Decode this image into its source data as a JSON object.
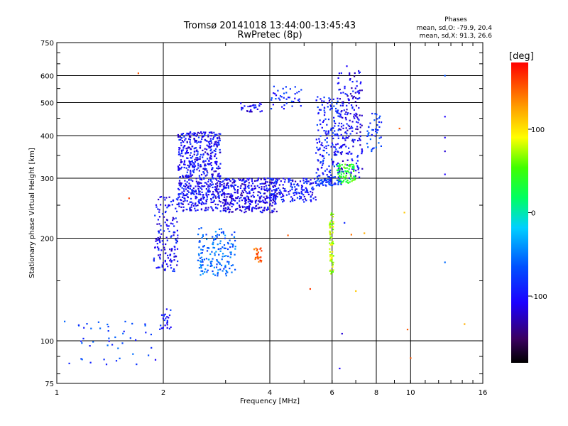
{
  "chart_data": {
    "type": "scatter",
    "title": "Tromsø 20141018 13:44:00-13:45:43",
    "subtitle": "RwPretec (8p)",
    "xlabel": "Frequency [MHz]",
    "ylabel": "Stationary phase Virtual Height [km]",
    "x_scale": "log",
    "y_scale": "log",
    "xlim": [
      1,
      16
    ],
    "ylim": [
      75,
      750
    ],
    "x_ticks": [
      1,
      2,
      4,
      6,
      8,
      10,
      16
    ],
    "y_ticks": [
      75,
      100,
      200,
      300,
      400,
      500,
      600,
      750
    ],
    "x_gridlines": [
      2,
      4,
      6,
      8,
      10
    ],
    "y_gridlines": [
      100,
      200,
      300,
      400,
      500,
      600
    ],
    "grid": true,
    "phases_box": {
      "title": "Phases",
      "line_o": "mean, sd,O: -79.9, 20.4",
      "line_x": "mean, sd,X:  91.3, 26.6"
    },
    "colorbar": {
      "label": "[deg]",
      "range": [
        -180,
        180
      ],
      "ticks": [
        100,
        0,
        -100
      ],
      "colormap": "rainbow (black→purple→blue→cyan→green→yellow→red)"
    },
    "clusters": [
      {
        "x": [
          2.2,
          2.9
        ],
        "y": [
          240,
          410
        ],
        "phase": -105,
        "count": 620
      },
      {
        "x": [
          2.9,
          4.2
        ],
        "y": [
          238,
          300
        ],
        "phase": -110,
        "count": 380
      },
      {
        "x": [
          4.0,
          5.4
        ],
        "y": [
          255,
          300
        ],
        "phase": -100,
        "count": 160
      },
      {
        "x": [
          5.4,
          6.4
        ],
        "y": [
          285,
          300
        ],
        "phase": -85,
        "count": 60
      },
      {
        "x": [
          1.88,
          2.2
        ],
        "y": [
          160,
          265
        ],
        "phase": -105,
        "count": 150
      },
      {
        "x": [
          2.5,
          3.2
        ],
        "y": [
          155,
          215
        ],
        "phase": -60,
        "count": 160
      },
      {
        "x": [
          5.4,
          6.3
        ],
        "y": [
          300,
          520
        ],
        "phase": -95,
        "count": 170
      },
      {
        "x": [
          6.2,
          7.3
        ],
        "y": [
          300,
          620
        ],
        "phase": -110,
        "count": 220
      },
      {
        "x": [
          6.2,
          7.0
        ],
        "y": [
          290,
          330
        ],
        "phase": 40,
        "count": 70
      },
      {
        "x": [
          3.3,
          3.8
        ],
        "y": [
          470,
          500
        ],
        "phase": -110,
        "count": 30
      },
      {
        "x": [
          4.0,
          5.0
        ],
        "y": [
          480,
          560
        ],
        "phase": -90,
        "count": 40
      },
      {
        "x": [
          3.6,
          3.8
        ],
        "y": [
          170,
          188
        ],
        "phase": 150,
        "count": 25
      },
      {
        "x": [
          5.9,
          6.05
        ],
        "y": [
          155,
          240
        ],
        "phase": 80,
        "count": 60
      },
      {
        "x": [
          7.5,
          8.3
        ],
        "y": [
          360,
          470
        ],
        "phase": -80,
        "count": 40
      },
      {
        "x": [
          1.05,
          1.85
        ],
        "y": [
          85,
          115
        ],
        "phase": -80,
        "count": 45
      },
      {
        "x": [
          1.95,
          2.1
        ],
        "y": [
          108,
          125
        ],
        "phase": -100,
        "count": 25
      }
    ],
    "points": [
      {
        "x": 1.7,
        "y": 610,
        "phase": 150
      },
      {
        "x": 1.6,
        "y": 262,
        "phase": 160
      },
      {
        "x": 6.6,
        "y": 640,
        "phase": -110
      },
      {
        "x": 12.5,
        "y": 600,
        "phase": -70
      },
      {
        "x": 12.5,
        "y": 455,
        "phase": -110
      },
      {
        "x": 12.5,
        "y": 395,
        "phase": -110
      },
      {
        "x": 12.5,
        "y": 360,
        "phase": -120
      },
      {
        "x": 12.5,
        "y": 308,
        "phase": -110
      },
      {
        "x": 12.5,
        "y": 170,
        "phase": -60
      },
      {
        "x": 9.3,
        "y": 420,
        "phase": 150
      },
      {
        "x": 9.8,
        "y": 108,
        "phase": 150
      },
      {
        "x": 10.0,
        "y": 89,
        "phase": 150
      },
      {
        "x": 9.6,
        "y": 238,
        "phase": 110
      },
      {
        "x": 14.2,
        "y": 112,
        "phase": 120
      },
      {
        "x": 6.3,
        "y": 83,
        "phase": -110
      },
      {
        "x": 6.4,
        "y": 105,
        "phase": -120
      },
      {
        "x": 4.5,
        "y": 204,
        "phase": 150
      },
      {
        "x": 5.2,
        "y": 142,
        "phase": 160
      },
      {
        "x": 7.0,
        "y": 140,
        "phase": 110
      },
      {
        "x": 6.8,
        "y": 205,
        "phase": 140
      },
      {
        "x": 6.5,
        "y": 222,
        "phase": -90
      },
      {
        "x": 7.4,
        "y": 207,
        "phase": 120
      },
      {
        "x": 1.9,
        "y": 88,
        "phase": -110
      }
    ]
  }
}
